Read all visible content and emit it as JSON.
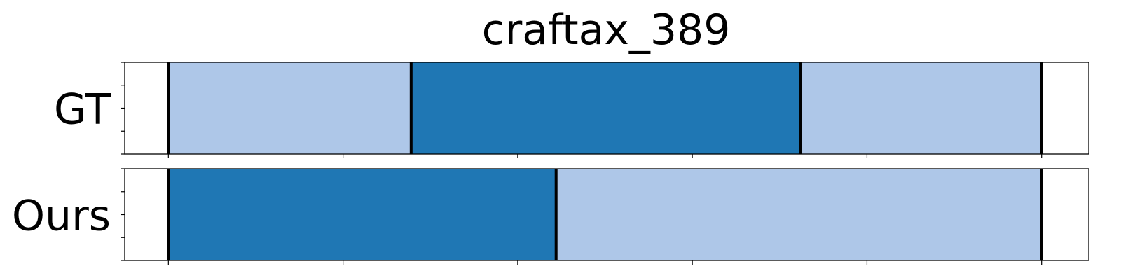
{
  "chart_data": {
    "type": "segmentation-timeline",
    "title": "craftax_389",
    "x_range": [
      -25,
      527
    ],
    "x_ticks": [
      0,
      100,
      200,
      300,
      400,
      500
    ],
    "y_ticks_per_row": 5,
    "colors": {
      "dark": "#1f77b4",
      "light": "#aec7e8",
      "boundary": "#000000",
      "axes": "#000000"
    },
    "rows": [
      {
        "label": "GT",
        "segments": [
          {
            "start": 0,
            "end": 139,
            "color": "light"
          },
          {
            "start": 139,
            "end": 362,
            "color": "dark"
          },
          {
            "start": 362,
            "end": 500,
            "color": "light"
          }
        ],
        "boundaries": [
          0,
          139,
          362,
          500
        ]
      },
      {
        "label": "Ours",
        "segments": [
          {
            "start": 0,
            "end": 222,
            "color": "dark"
          },
          {
            "start": 222,
            "end": 500,
            "color": "light"
          }
        ],
        "boundaries": [
          0,
          222,
          500
        ]
      }
    ]
  }
}
